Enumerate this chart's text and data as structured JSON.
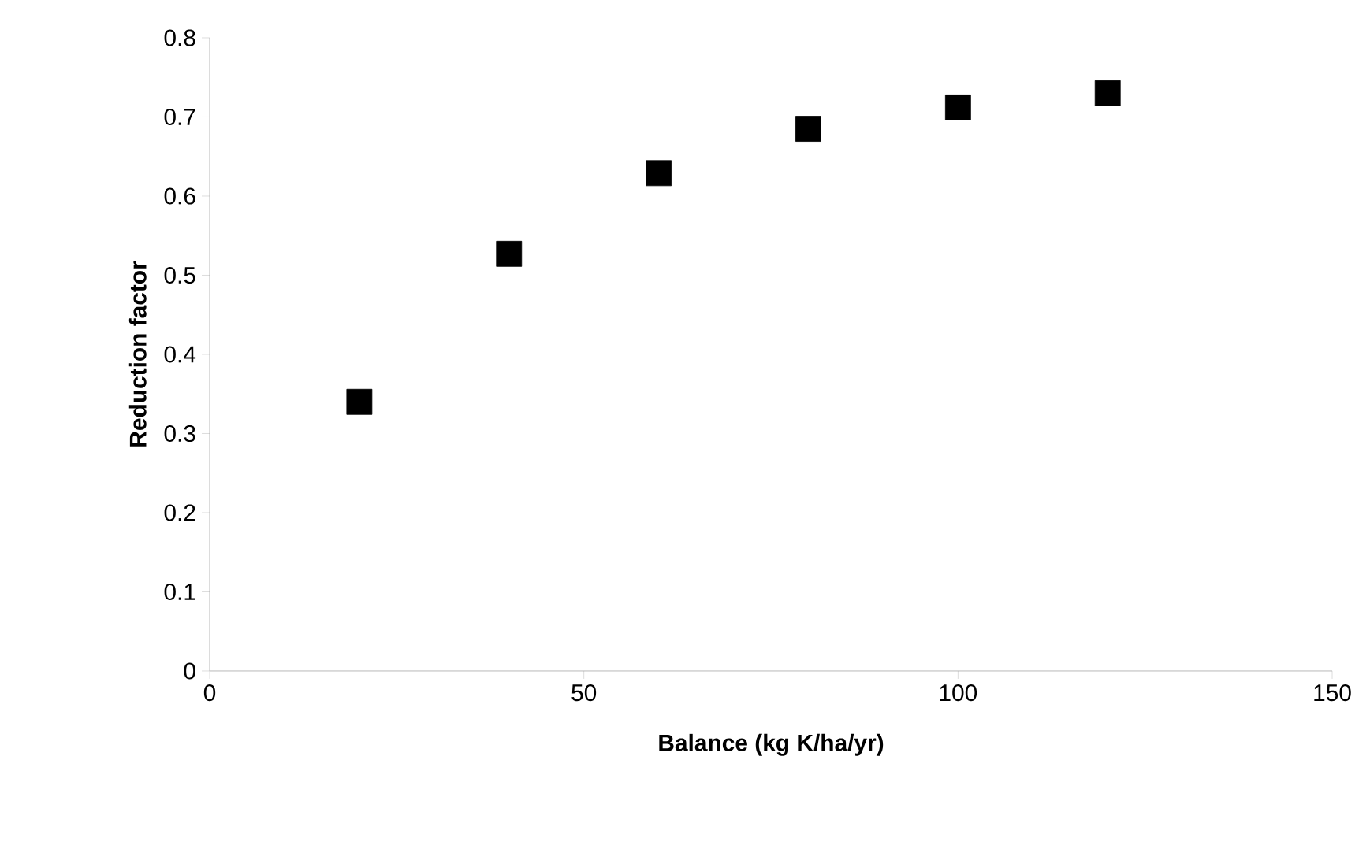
{
  "chart_data": {
    "type": "scatter",
    "xlabel": "Balance (kg K/ha/yr)",
    "ylabel": "Reduction factor",
    "x": [
      20,
      40,
      60,
      80,
      100,
      120
    ],
    "values": [
      0.34,
      0.527,
      0.629,
      0.685,
      0.712,
      0.73
    ],
    "color": "#000000",
    "marker": "square",
    "xlim": [
      0,
      150
    ],
    "xticks": [
      0,
      50,
      100,
      150
    ],
    "ylim": [
      0,
      0.8
    ],
    "yticks": [
      0,
      0.1,
      0.2,
      0.3,
      0.4,
      0.5,
      0.6,
      0.7,
      0.8
    ],
    "grid": false
  }
}
